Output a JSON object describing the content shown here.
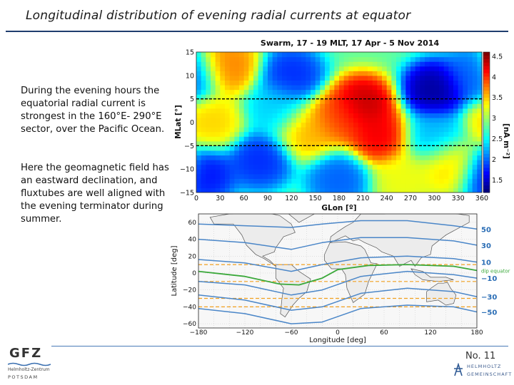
{
  "slide": {
    "title": "Longitudinal distribution of evening radial currents at equator",
    "paragraph1": "During the evening hours the equatorial radial current is strongest in the 160°E- 290°E sector, over the Pacific Ocean.",
    "paragraph2": "Here the geomagnetic field has an eastward declination, and fluxtubes are well aligned with the evening terminator during summer.",
    "slide_number": "No. 11"
  },
  "logos": {
    "gfz_word": "GFZ",
    "gfz_sub1": "Helmholtz-Zentrum",
    "gfz_sub2": "POTSDAM",
    "helmholtz_1": "HELMHOLTZ",
    "helmholtz_2": "GEMEINSCHAFT"
  },
  "colors": {
    "title_rule": "#1f3e6e",
    "contour_blue": "#4a86c8",
    "dip_equator_green": "#3aa83a",
    "dashed_orange": "#f0a020"
  },
  "chart_data": [
    {
      "type": "heatmap",
      "title": "Swarm, 17 - 19 MLT, 17 Apr - 5 Nov 2014",
      "xlabel": "GLon [º]",
      "ylabel": "MLat [°]",
      "xlim": [
        0,
        360
      ],
      "ylim": [
        -15,
        15
      ],
      "xticks": [
        "0",
        "30",
        "60",
        "90",
        "120",
        "150",
        "180",
        "210",
        "240",
        "270",
        "300",
        "330",
        "360"
      ],
      "yticks": [
        "15",
        "10",
        "5",
        "0",
        "−5",
        "−10",
        "−15"
      ],
      "colorbar_label": "[nA m⁻²]",
      "colorbar_ticks": [
        "4.5",
        "4",
        "3.5",
        "3",
        "2.5",
        "2",
        "1.5"
      ],
      "colorbar_range": [
        1.2,
        4.6
      ],
      "dashed_lines_mlat": [
        5,
        -5
      ],
      "hotspots": [
        {
          "lon": 210,
          "lat": 4,
          "value": 4.5
        },
        {
          "lon": 230,
          "lat": -3,
          "value": 4.3
        },
        {
          "lon": 180,
          "lat": 1,
          "value": 4.0
        },
        {
          "lon": 40,
          "lat": 12,
          "value": 3.8
        },
        {
          "lon": 20,
          "lat": 0,
          "value": 3.5
        },
        {
          "lon": 140,
          "lat": -2,
          "value": 3.6
        },
        {
          "lon": 320,
          "lat": -9,
          "value": 3.5
        },
        {
          "lon": 260,
          "lat": -12,
          "value": 3.3
        },
        {
          "lon": 300,
          "lat": 7,
          "value": 1.2
        },
        {
          "lon": 120,
          "lat": 10,
          "value": 1.7
        },
        {
          "lon": 80,
          "lat": -8,
          "value": 1.7
        },
        {
          "lon": 10,
          "lat": -11,
          "value": 1.6
        },
        {
          "lon": 180,
          "lat": -12,
          "value": 1.9
        },
        {
          "lon": 350,
          "lat": 10,
          "value": 1.9
        },
        {
          "lon": 300,
          "lat": -3,
          "value": 2.2
        },
        {
          "lon": 100,
          "lat": 3,
          "value": 2.3
        }
      ],
      "background_value": 2.8
    },
    {
      "type": "line",
      "title": "",
      "xlabel": "Longitude [deg]",
      "ylabel": "Latitude [deg]",
      "xlim": [
        -180,
        180
      ],
      "ylim": [
        -65,
        70
      ],
      "xticks": [
        "−180",
        "−120",
        "−60",
        "0",
        "60",
        "120",
        "180"
      ],
      "yticks": [
        "60",
        "40",
        "20",
        "0",
        "−20",
        "−40",
        "−60"
      ],
      "dashed_latitudes": [
        10,
        -10,
        -30,
        -40
      ],
      "series": [
        {
          "name": "50",
          "kind": "contour",
          "x": [
            -180,
            -120,
            -60,
            -20,
            30,
            90,
            150,
            180
          ],
          "y": [
            58,
            56,
            54,
            58,
            62,
            62,
            56,
            52
          ]
        },
        {
          "name": "30",
          "kind": "contour",
          "x": [
            -180,
            -120,
            -60,
            -20,
            30,
            90,
            150,
            180
          ],
          "y": [
            40,
            36,
            28,
            36,
            42,
            42,
            38,
            33
          ]
        },
        {
          "name": "10",
          "kind": "contour",
          "x": [
            -180,
            -120,
            -60,
            -20,
            30,
            90,
            150,
            180
          ],
          "y": [
            16,
            12,
            2,
            10,
            18,
            20,
            17,
            13
          ]
        },
        {
          "name": "dip equator",
          "kind": "dip",
          "x": [
            -180,
            -120,
            -75,
            -50,
            -20,
            0,
            40,
            90,
            150,
            180
          ],
          "y": [
            2,
            -4,
            -13,
            -14,
            -6,
            4,
            9,
            10,
            8,
            3
          ]
        },
        {
          "name": "−10",
          "kind": "contour",
          "x": [
            -180,
            -120,
            -60,
            -20,
            30,
            90,
            150,
            180
          ],
          "y": [
            -10,
            -14,
            -26,
            -20,
            -4,
            2,
            -2,
            -6
          ]
        },
        {
          "name": "−30",
          "kind": "contour",
          "x": [
            -180,
            -120,
            -60,
            -20,
            30,
            90,
            150,
            180
          ],
          "y": [
            -26,
            -32,
            -44,
            -40,
            -24,
            -18,
            -22,
            -28
          ]
        },
        {
          "name": "−50",
          "kind": "contour",
          "x": [
            -180,
            -120,
            -60,
            -20,
            30,
            90,
            150,
            180
          ],
          "y": [
            -42,
            -48,
            -60,
            -58,
            -42,
            -38,
            -40,
            -46
          ]
        }
      ]
    }
  ]
}
